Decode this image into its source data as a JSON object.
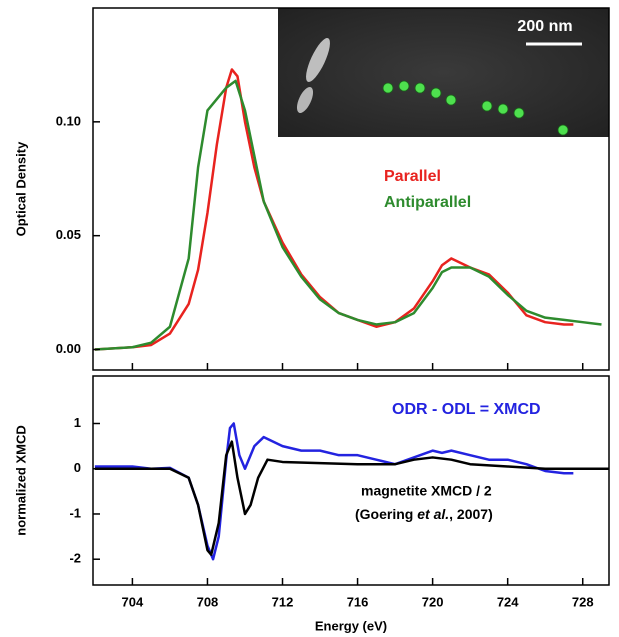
{
  "chart_data": [
    {
      "type": "line",
      "ylabel": "Optical Density",
      "xlim": [
        701.9,
        729.4
      ],
      "ylim": [
        -0.009,
        0.15
      ],
      "yticks": [
        {
          "value": 0,
          "label": "0.00"
        },
        {
          "value": 0.05,
          "label": "0.05"
        },
        {
          "value": 0.1,
          "label": "0.10"
        }
      ],
      "xticks": [
        704,
        708,
        712,
        716,
        720,
        724,
        728
      ],
      "inset_label": "200 nm",
      "series": [
        {
          "name": "Parallel",
          "color": "#e8231f",
          "x": [
            702,
            704,
            705,
            706,
            707,
            707.5,
            708,
            708.5,
            709,
            709.3,
            709.6,
            710,
            710.5,
            711,
            712,
            713,
            714,
            715,
            716,
            717,
            718,
            719,
            720,
            720.5,
            721,
            721.5,
            722,
            723,
            724,
            725,
            726,
            727,
            727.5
          ],
          "values": [
            0.0,
            0.001,
            0.002,
            0.007,
            0.02,
            0.035,
            0.06,
            0.09,
            0.115,
            0.123,
            0.12,
            0.1,
            0.08,
            0.065,
            0.047,
            0.033,
            0.023,
            0.016,
            0.013,
            0.01,
            0.012,
            0.018,
            0.03,
            0.037,
            0.04,
            0.038,
            0.036,
            0.033,
            0.025,
            0.015,
            0.012,
            0.011,
            0.011
          ]
        },
        {
          "name": "Antiparallel",
          "color": "#2e8b2e",
          "x": [
            702,
            704,
            705,
            706,
            707,
            707.5,
            708,
            708.5,
            709,
            709.5,
            710,
            710.5,
            711,
            712,
            713,
            714,
            715,
            716,
            717,
            718,
            719,
            720,
            720.5,
            721,
            722,
            723,
            724,
            725,
            726,
            727,
            728,
            729
          ],
          "values": [
            0.0,
            0.001,
            0.003,
            0.01,
            0.04,
            0.08,
            0.105,
            0.11,
            0.115,
            0.118,
            0.105,
            0.085,
            0.065,
            0.045,
            0.032,
            0.022,
            0.016,
            0.013,
            0.011,
            0.012,
            0.016,
            0.027,
            0.034,
            0.036,
            0.036,
            0.032,
            0.024,
            0.017,
            0.014,
            0.013,
            0.012,
            0.011
          ]
        }
      ]
    },
    {
      "type": "line",
      "ylabel": "normalized XMCD",
      "xlabel": "Energy (eV)",
      "xlim": [
        701.9,
        729.4
      ],
      "ylim": [
        -2.57,
        2.05
      ],
      "yticks": [
        1,
        0,
        -1,
        -2
      ],
      "xticks": [
        704,
        708,
        712,
        716,
        720,
        724,
        728
      ],
      "annotation": [
        "(Goering ",
        "et al.",
        ", 2007)"
      ],
      "series": [
        {
          "name": "ODR - ODL = XMCD",
          "color": "#2323e0",
          "x": [
            702,
            704,
            705,
            706,
            707,
            707.5,
            708,
            708.3,
            708.6,
            709,
            709.2,
            709.4,
            709.7,
            710,
            710.5,
            711,
            711.5,
            712,
            713,
            714,
            715,
            716,
            717,
            718,
            719,
            720,
            720.5,
            721,
            722,
            723,
            724,
            725,
            726,
            727,
            727.5
          ],
          "values": [
            0.05,
            0.05,
            0.0,
            0.02,
            -0.2,
            -0.8,
            -1.7,
            -2.0,
            -1.5,
            0.2,
            0.9,
            1.0,
            0.3,
            0.0,
            0.5,
            0.7,
            0.6,
            0.5,
            0.4,
            0.4,
            0.3,
            0.3,
            0.2,
            0.1,
            0.25,
            0.4,
            0.35,
            0.4,
            0.3,
            0.2,
            0.2,
            0.1,
            -0.05,
            -0.1,
            -0.1
          ]
        },
        {
          "name": "magnetite XMCD / 2",
          "color": "#000000",
          "x": [
            702,
            706,
            707,
            707.5,
            708,
            708.2,
            708.6,
            709,
            709.3,
            709.6,
            710,
            710.3,
            710.7,
            711.2,
            712,
            716,
            718,
            719,
            720,
            721,
            722,
            724,
            726,
            729.4
          ],
          "values": [
            0,
            0,
            -0.2,
            -0.8,
            -1.8,
            -1.9,
            -1.2,
            0.3,
            0.6,
            -0.2,
            -1.0,
            -0.8,
            -0.2,
            0.2,
            0.15,
            0.1,
            0.1,
            0.2,
            0.25,
            0.2,
            0.1,
            0.05,
            0,
            0
          ]
        }
      ]
    }
  ]
}
